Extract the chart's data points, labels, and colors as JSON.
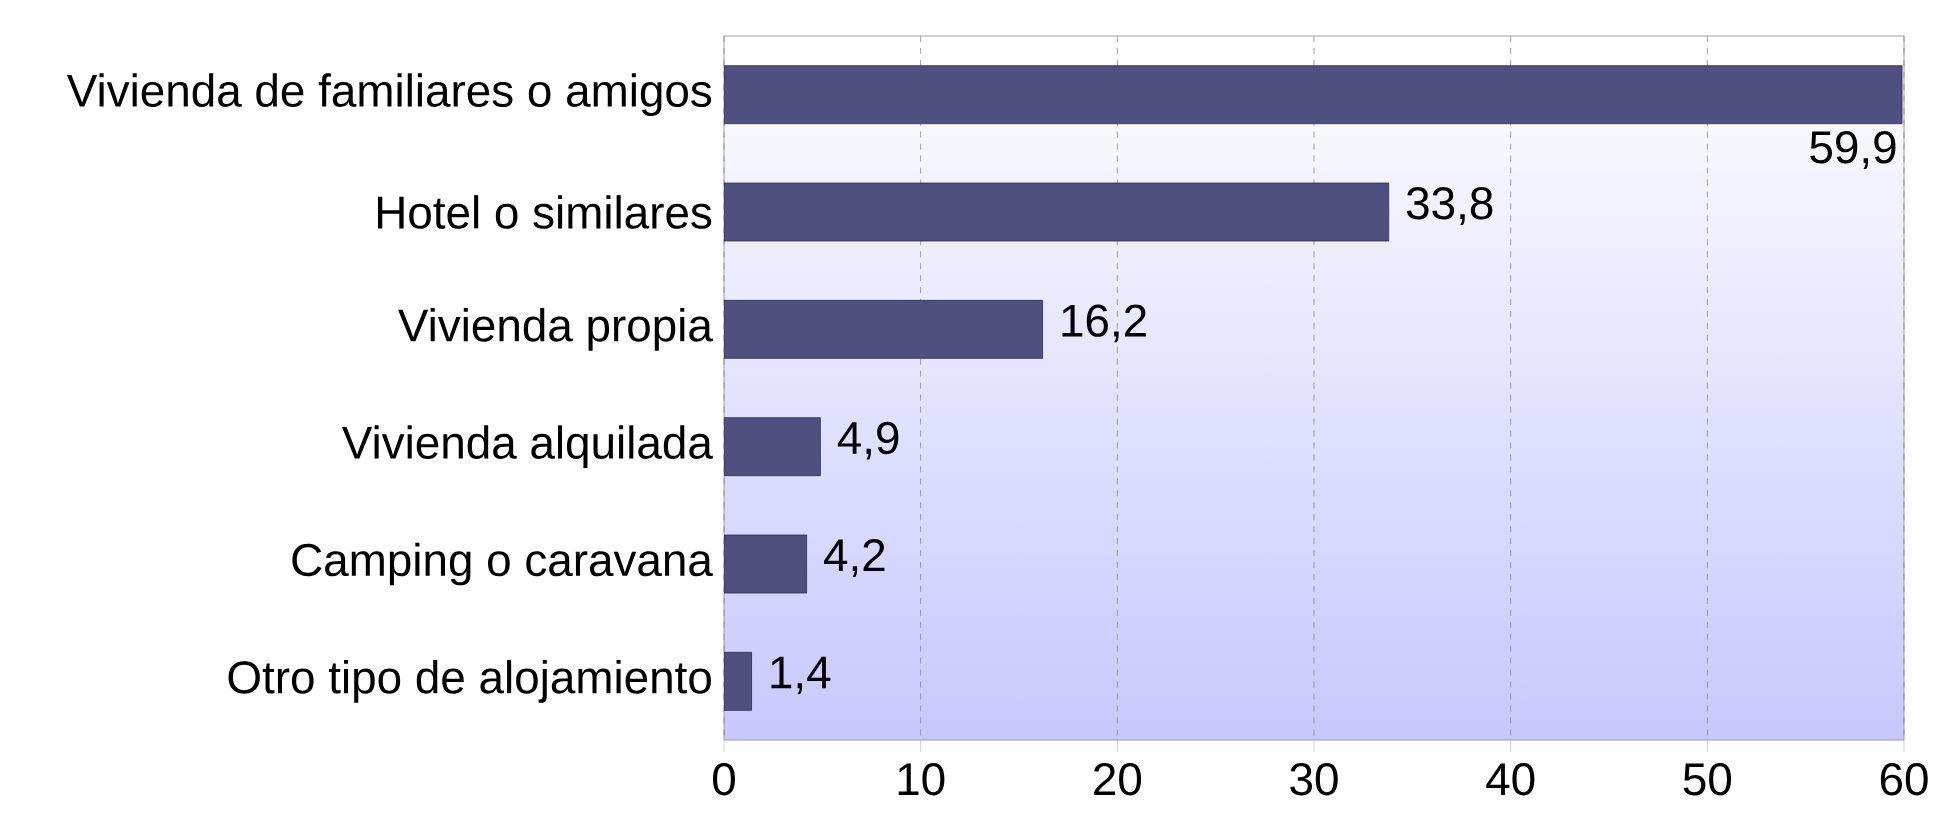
{
  "chart_data": {
    "type": "bar",
    "orientation": "horizontal",
    "categories": [
      "Vivienda de familiares o amigos",
      "Hotel o similares",
      "Vivienda propia",
      "Vivienda alquilada",
      "Camping o caravana",
      "Otro tipo de alojamiento"
    ],
    "values": [
      59.9,
      33.8,
      16.2,
      4.9,
      4.2,
      1.4
    ],
    "value_labels": [
      "59,9",
      "33,8",
      "16,2",
      "4,9",
      "4,2",
      "1,4"
    ],
    "color": "#4f4f80",
    "xlim": [
      0,
      60
    ],
    "xticks": [
      0,
      10,
      20,
      30,
      40,
      50,
      60
    ],
    "grid": "x"
  }
}
